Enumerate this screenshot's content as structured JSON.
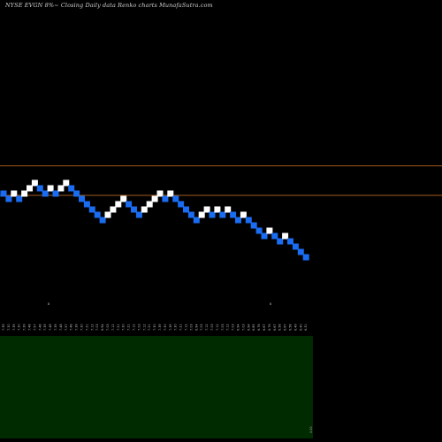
{
  "header": {
    "title": "NYSE EVGN  8%~  Closing Daily data  Renko  charts MunafaSutra.com"
  },
  "colors": {
    "background": "#000000",
    "up_brick": "#ffffff",
    "down_brick": "#1a6cf0",
    "reference_line": "#a05a1e",
    "volume_panel": "#002a00",
    "label": "#bdbdbd"
  },
  "chart_data": {
    "type": "renko",
    "title": "NYSE EVGN  8%~  Closing Daily data  Renko  charts MunafaSutra.com",
    "xlabel": "",
    "ylabel": "",
    "grid": false,
    "reference_lines": [
      7.86,
      7.36
    ],
    "bricks": [
      {
        "dir": "down",
        "level": 7.39
      },
      {
        "dir": "down",
        "level": 7.3
      },
      {
        "dir": "up",
        "level": 7.39
      },
      {
        "dir": "down",
        "level": 7.3
      },
      {
        "dir": "up",
        "level": 7.39
      },
      {
        "dir": "up",
        "level": 7.48
      },
      {
        "dir": "up",
        "level": 7.57
      },
      {
        "dir": "down",
        "level": 7.48
      },
      {
        "dir": "down",
        "level": 7.39
      },
      {
        "dir": "up",
        "level": 7.48
      },
      {
        "dir": "down",
        "level": 7.39
      },
      {
        "dir": "up",
        "level": 7.48
      },
      {
        "dir": "up",
        "level": 7.57
      },
      {
        "dir": "down",
        "level": 7.48
      },
      {
        "dir": "down",
        "level": 7.39
      },
      {
        "dir": "down",
        "level": 7.3
      },
      {
        "dir": "down",
        "level": 7.21
      },
      {
        "dir": "down",
        "level": 7.12
      },
      {
        "dir": "down",
        "level": 7.03
      },
      {
        "dir": "down",
        "level": 6.94
      },
      {
        "dir": "up",
        "level": 7.03
      },
      {
        "dir": "up",
        "level": 7.12
      },
      {
        "dir": "up",
        "level": 7.21
      },
      {
        "dir": "up",
        "level": 7.3
      },
      {
        "dir": "down",
        "level": 7.21
      },
      {
        "dir": "down",
        "level": 7.12
      },
      {
        "dir": "down",
        "level": 7.03
      },
      {
        "dir": "up",
        "level": 7.12
      },
      {
        "dir": "up",
        "level": 7.21
      },
      {
        "dir": "up",
        "level": 7.3
      },
      {
        "dir": "up",
        "level": 7.39
      },
      {
        "dir": "down",
        "level": 7.3
      },
      {
        "dir": "up",
        "level": 7.39
      },
      {
        "dir": "down",
        "level": 7.3
      },
      {
        "dir": "down",
        "level": 7.21
      },
      {
        "dir": "down",
        "level": 7.12
      },
      {
        "dir": "down",
        "level": 7.03
      },
      {
        "dir": "down",
        "level": 6.94
      },
      {
        "dir": "up",
        "level": 7.03
      },
      {
        "dir": "up",
        "level": 7.12
      },
      {
        "dir": "down",
        "level": 7.03
      },
      {
        "dir": "up",
        "level": 7.12
      },
      {
        "dir": "down",
        "level": 7.03
      },
      {
        "dir": "up",
        "level": 7.12
      },
      {
        "dir": "down",
        "level": 7.03
      },
      {
        "dir": "down",
        "level": 6.94
      },
      {
        "dir": "up",
        "level": 7.03
      },
      {
        "dir": "down",
        "level": 6.94
      },
      {
        "dir": "down",
        "level": 6.85
      },
      {
        "dir": "down",
        "level": 6.76
      },
      {
        "dir": "down",
        "level": 6.67
      },
      {
        "dir": "up",
        "level": 6.76
      },
      {
        "dir": "down",
        "level": 6.67
      },
      {
        "dir": "down",
        "level": 6.58
      },
      {
        "dir": "up",
        "level": 6.67
      },
      {
        "dir": "down",
        "level": 6.58
      },
      {
        "dir": "down",
        "level": 6.49
      },
      {
        "dir": "down",
        "level": 6.4
      },
      {
        "dir": "down",
        "level": 6.31
      }
    ],
    "x_tick_labels": [
      "7.39",
      "7.30",
      "7.39",
      "7.30",
      "7.39",
      "7.48",
      "7.57",
      "7.48",
      "7.39",
      "7.48",
      "7.39",
      "7.48",
      "7.57",
      "7.48",
      "7.39",
      "7.30",
      "7.21",
      "7.12",
      "7.03",
      "6.94",
      "7.03",
      "7.12",
      "7.21",
      "7.30",
      "7.21",
      "7.12",
      "7.03",
      "7.12",
      "7.21",
      "7.30",
      "7.39",
      "7.30",
      "7.39",
      "7.30",
      "7.21",
      "7.12",
      "7.03",
      "6.94",
      "7.03",
      "7.12",
      "7.03",
      "7.12",
      "7.03",
      "7.12",
      "7.03",
      "6.94",
      "7.03",
      "6.94",
      "6.85",
      "6.76",
      "6.67",
      "6.76",
      "6.67",
      "6.58",
      "6.67",
      "6.58",
      "6.49",
      "6.40",
      "6.31"
    ],
    "upper_markers": [
      "8",
      "8"
    ],
    "volume_panel_label": "0.00"
  }
}
